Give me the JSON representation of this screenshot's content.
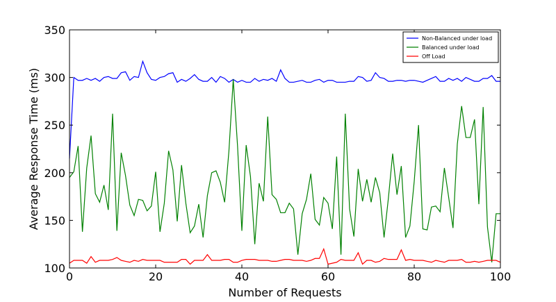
{
  "chart_data": {
    "type": "line",
    "title": "",
    "xlabel": "Number of Requests",
    "ylabel": "Average Response Time (ms)",
    "xlim": [
      0,
      100
    ],
    "ylim": [
      100,
      350
    ],
    "xticks": [
      0,
      20,
      40,
      60,
      80,
      100
    ],
    "yticks": [
      100,
      150,
      200,
      250,
      300,
      350
    ],
    "grid": false,
    "legend_position": "top-right",
    "x": [
      0,
      1,
      2,
      3,
      4,
      5,
      6,
      7,
      8,
      9,
      10,
      11,
      12,
      13,
      14,
      15,
      16,
      17,
      18,
      19,
      20,
      21,
      22,
      23,
      24,
      25,
      26,
      27,
      28,
      29,
      30,
      31,
      32,
      33,
      34,
      35,
      36,
      37,
      38,
      39,
      40,
      41,
      42,
      43,
      44,
      45,
      46,
      47,
      48,
      49,
      50,
      51,
      52,
      53,
      54,
      55,
      56,
      57,
      58,
      59,
      60,
      61,
      62,
      63,
      64,
      65,
      66,
      67,
      68,
      69,
      70,
      71,
      72,
      73,
      74,
      75,
      76,
      77,
      78,
      79,
      80,
      81,
      82,
      83,
      84,
      85,
      86,
      87,
      88,
      89,
      90,
      91,
      92,
      93,
      94,
      95,
      96,
      97,
      98,
      99,
      100
    ],
    "series": [
      {
        "name": "Non-Balanced under load",
        "color": "#0000ff",
        "values": [
          215,
          300,
          297,
          297,
          299,
          297,
          299,
          296,
          300,
          301,
          299,
          299,
          305,
          306,
          297,
          301,
          300,
          317,
          305,
          298,
          297,
          300,
          301,
          304,
          305,
          295,
          298,
          296,
          299,
          303,
          298,
          296,
          296,
          300,
          295,
          301,
          299,
          295,
          298,
          295,
          297,
          295,
          295,
          299,
          296,
          298,
          297,
          299,
          296,
          308,
          299,
          295,
          295,
          296,
          297,
          295,
          295,
          297,
          298,
          295,
          297,
          297,
          295,
          295,
          295,
          296,
          296,
          301,
          300,
          296,
          297,
          305,
          300,
          299,
          296,
          296,
          297,
          297,
          296,
          297,
          297,
          296,
          295,
          297,
          299,
          301,
          296,
          296,
          299,
          297,
          299,
          296,
          300,
          298,
          296,
          296,
          299,
          299,
          302,
          296,
          296
        ]
      },
      {
        "name": "Balanced under load",
        "color": "#008000",
        "values": [
          195,
          201,
          228,
          138,
          205,
          239,
          178,
          169,
          187,
          161,
          262,
          139,
          221,
          197,
          166,
          155,
          172,
          171,
          160,
          165,
          201,
          138,
          168,
          223,
          203,
          149,
          208,
          168,
          137,
          144,
          167,
          132,
          176,
          200,
          202,
          190,
          169,
          223,
          298,
          228,
          139,
          229,
          196,
          125,
          189,
          170,
          259,
          177,
          172,
          158,
          158,
          168,
          162,
          114,
          157,
          172,
          199,
          151,
          145,
          174,
          168,
          141,
          217,
          114,
          262,
          162,
          133,
          204,
          170,
          193,
          169,
          195,
          179,
          132,
          173,
          220,
          177,
          207,
          132,
          144,
          191,
          250,
          141,
          140,
          164,
          165,
          159,
          205,
          174,
          142,
          230,
          270,
          237,
          237,
          256,
          167,
          269,
          143,
          106,
          157,
          157
        ]
      },
      {
        "name": "Off Load",
        "color": "#ff0000",
        "values": [
          105,
          108,
          108,
          108,
          105,
          112,
          106,
          108,
          108,
          108,
          109,
          111,
          108,
          107,
          106,
          108,
          107,
          109,
          108,
          108,
          108,
          108,
          106,
          106,
          106,
          106,
          109,
          109,
          104,
          108,
          108,
          108,
          114,
          108,
          108,
          108,
          109,
          109,
          106,
          106,
          108,
          109,
          109,
          109,
          108,
          108,
          108,
          107,
          107,
          108,
          109,
          109,
          108,
          108,
          108,
          107,
          108,
          110,
          110,
          120,
          104,
          105,
          106,
          109,
          108,
          108,
          108,
          116,
          104,
          108,
          108,
          106,
          107,
          110,
          109,
          109,
          109,
          119,
          108,
          109,
          108,
          108,
          108,
          107,
          106,
          108,
          107,
          106,
          108,
          108,
          108,
          109,
          106,
          106,
          107,
          106,
          107,
          108,
          108,
          108,
          106
        ]
      }
    ]
  }
}
